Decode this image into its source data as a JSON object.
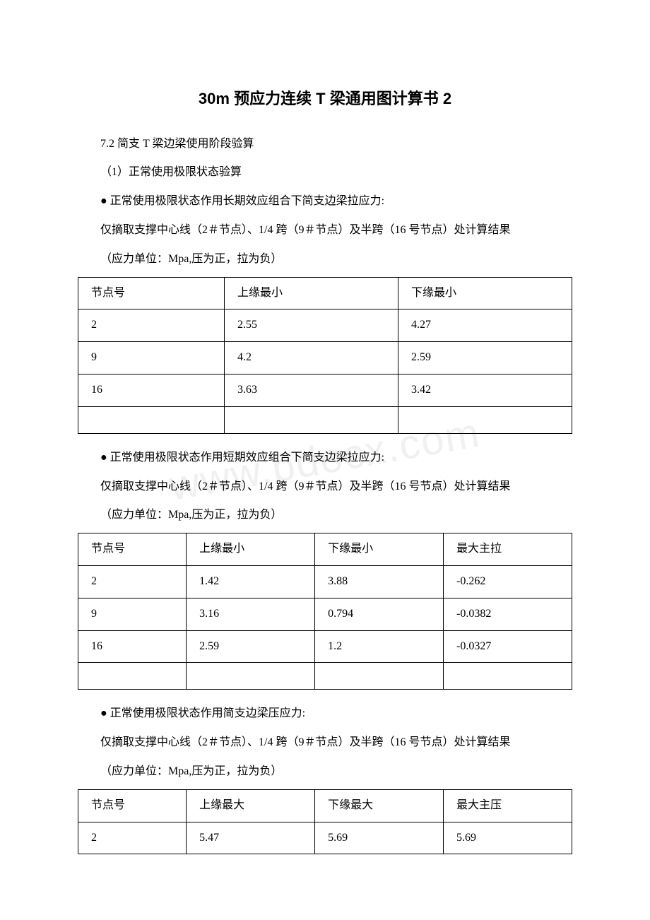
{
  "title": "30m 预应力连续 T 梁通用图计算书 2",
  "section": "7.2 简支 T 梁边梁使用阶段验算",
  "subsection": "（1）正常使用极限状态验算",
  "bullet1": "● 正常使用极限状态作用长期效应组合下简支边梁拉应力:",
  "note_line": "仅摘取支撑中心线（2＃节点）、1/4 跨（9＃节点）及半跨（16 号节点）处计算结果",
  "unit_note": "（应力单位：Mpa,压为正，拉为负）",
  "table1": {
    "headers": [
      "节点号",
      "上缘最小",
      "下缘最小"
    ],
    "rows": [
      [
        "2",
        "2.55",
        "4.27"
      ],
      [
        "9",
        "4.2",
        "2.59"
      ],
      [
        "16",
        "3.63",
        "3.42"
      ],
      [
        "",
        "",
        ""
      ]
    ]
  },
  "bullet2": "● 正常使用极限状态作用短期效应组合下简支边梁拉应力:",
  "table2": {
    "headers": [
      "节点号",
      "上缘最小",
      "下缘最小",
      "最大主拉"
    ],
    "rows": [
      [
        "2",
        "1.42",
        "3.88",
        "-0.262"
      ],
      [
        "9",
        "3.16",
        "0.794",
        "-0.0382"
      ],
      [
        "16",
        "2.59",
        "1.2",
        "-0.0327"
      ],
      [
        "",
        "",
        "",
        ""
      ]
    ]
  },
  "bullet3": "● 正常使用极限状态作用简支边梁压应力:",
  "table3": {
    "headers": [
      "节点号",
      "上缘最大",
      "下缘最大",
      "最大主压"
    ],
    "rows": [
      [
        "2",
        "5.47",
        "5.69",
        "5.69"
      ]
    ]
  },
  "watermark": "www.bdocx.com"
}
